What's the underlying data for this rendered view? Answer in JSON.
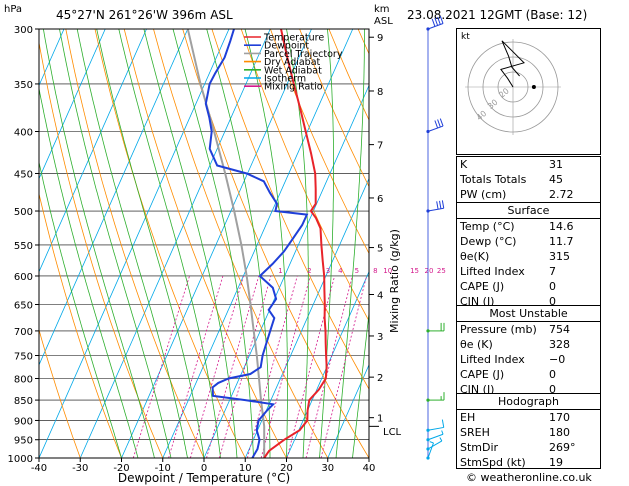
{
  "header": {
    "unit_p": "hPa",
    "location": "45°27'N  261°26'W  396m  ASL",
    "unit_km": "km",
    "unit_asl": "ASL",
    "datetime": "23.08.2021  12GMT  (Base: 12)"
  },
  "legend": [
    {
      "label": "Temperature",
      "color": "#e8232a"
    },
    {
      "label": "Dewpoint",
      "color": "#1f3fd8"
    },
    {
      "label": "Parcel Trajectory",
      "color": "#a0a0a0"
    },
    {
      "label": "Dry Adiabat",
      "color": "#ff8c00"
    },
    {
      "label": "Wet Adiabat",
      "color": "#2eaf2e"
    },
    {
      "label": "Isotherm",
      "color": "#00a8e8"
    },
    {
      "label": "Mixing Ratio",
      "color": "#d4198c"
    }
  ],
  "axes": {
    "xlabel": "Dewpoint / Temperature (°C)",
    "right_label": "Mixing Ratio (g/kg)",
    "lcl_label": "LCL",
    "footer": "© weatheronline.co.uk"
  },
  "chart_data": {
    "type": "line",
    "pressure_ticks": [
      300,
      350,
      400,
      450,
      500,
      550,
      600,
      650,
      700,
      750,
      800,
      850,
      900,
      950,
      1000
    ],
    "temp_ticks": [
      -40,
      -30,
      -20,
      -10,
      0,
      10,
      20,
      30,
      40
    ],
    "xlim": [
      -40,
      40
    ],
    "ylim_hpa": [
      1000,
      300
    ],
    "km_ticks": [
      {
        "label": "9",
        "p": 307
      },
      {
        "label": "8",
        "p": 357
      },
      {
        "label": "7",
        "p": 415
      },
      {
        "label": "6",
        "p": 482
      },
      {
        "label": "5",
        "p": 554
      },
      {
        "label": "4",
        "p": 632
      },
      {
        "label": "3",
        "p": 710
      },
      {
        "label": "2",
        "p": 797
      },
      {
        "label": "1",
        "p": 893
      }
    ],
    "lcl_p": 915,
    "mixing_ratio_labels": [
      {
        "label": "1",
        "x": -1.0
      },
      {
        "label": "2",
        "x": 6.0
      },
      {
        "label": "3",
        "x": 10.5
      },
      {
        "label": "4",
        "x": 13.5
      },
      {
        "label": "5",
        "x": 17.5
      },
      {
        "label": "8",
        "x": 22.0
      },
      {
        "label": "10",
        "x": 25.0
      },
      {
        "label": "15",
        "x": 31.5
      },
      {
        "label": "20",
        "x": 35.0
      },
      {
        "label": "25",
        "x": 38.0
      }
    ],
    "series": [
      {
        "name": "Temperature",
        "color": "#e8232a",
        "points": [
          [
            1000,
            14.6
          ],
          [
            980,
            15.0
          ],
          [
            950,
            17.5
          ],
          [
            925,
            20.2
          ],
          [
            900,
            21.0
          ],
          [
            875,
            20.0
          ],
          [
            850,
            19.3
          ],
          [
            825,
            20.5
          ],
          [
            800,
            21.0
          ],
          [
            775,
            20.0
          ],
          [
            750,
            18.6
          ],
          [
            725,
            17.2
          ],
          [
            700,
            15.8
          ],
          [
            675,
            14.2
          ],
          [
            650,
            12.8
          ],
          [
            625,
            11.2
          ],
          [
            600,
            9.6
          ],
          [
            575,
            7.6
          ],
          [
            550,
            5.6
          ],
          [
            525,
            3.6
          ],
          [
            510,
            1.4
          ],
          [
            500,
            -0.6
          ],
          [
            490,
            -0.2
          ],
          [
            470,
            -1.8
          ],
          [
            450,
            -3.6
          ],
          [
            425,
            -6.8
          ],
          [
            400,
            -10.4
          ],
          [
            375,
            -14.2
          ],
          [
            350,
            -18.4
          ],
          [
            325,
            -22.8
          ],
          [
            300,
            -27.4
          ]
        ]
      },
      {
        "name": "Dewpoint",
        "color": "#1f3fd8",
        "points": [
          [
            1000,
            11.7
          ],
          [
            975,
            12.0
          ],
          [
            950,
            11.5
          ],
          [
            925,
            9.8
          ],
          [
            900,
            9.2
          ],
          [
            875,
            10.2
          ],
          [
            860,
            11.0
          ],
          [
            850,
            3.8
          ],
          [
            840,
            -4.5
          ],
          [
            820,
            -5.5
          ],
          [
            810,
            -4.6
          ],
          [
            800,
            -2.6
          ],
          [
            790,
            2.2
          ],
          [
            775,
            4.0
          ],
          [
            750,
            3.2
          ],
          [
            725,
            2.8
          ],
          [
            700,
            2.4
          ],
          [
            675,
            2.0
          ],
          [
            660,
            -0.2
          ],
          [
            640,
            0.4
          ],
          [
            620,
            -1.6
          ],
          [
            600,
            -6.0
          ],
          [
            580,
            -4.2
          ],
          [
            560,
            -2.8
          ],
          [
            540,
            -2.0
          ],
          [
            520,
            -1.2
          ],
          [
            505,
            -1.2
          ],
          [
            500,
            -9.2
          ],
          [
            490,
            -9.6
          ],
          [
            475,
            -12.5
          ],
          [
            460,
            -15.2
          ],
          [
            450,
            -20.2
          ],
          [
            440,
            -28.2
          ],
          [
            420,
            -31.8
          ],
          [
            400,
            -33.2
          ],
          [
            385,
            -35.2
          ],
          [
            370,
            -37.6
          ],
          [
            360,
            -38.2
          ],
          [
            350,
            -38.8
          ],
          [
            340,
            -38.6
          ],
          [
            325,
            -38.0
          ],
          [
            310,
            -38.4
          ],
          [
            300,
            -38.8
          ]
        ]
      },
      {
        "name": "Parcel Trajectory",
        "color": "#a0a0a0",
        "points": [
          [
            1000,
            14.6
          ],
          [
            915,
            11.2
          ],
          [
            850,
            7.6
          ],
          [
            800,
            4.8
          ],
          [
            750,
            1.8
          ],
          [
            700,
            -1.6
          ],
          [
            650,
            -5.2
          ],
          [
            600,
            -9.2
          ],
          [
            550,
            -13.8
          ],
          [
            500,
            -19.2
          ],
          [
            450,
            -25.4
          ],
          [
            400,
            -32.6
          ],
          [
            350,
            -41.0
          ],
          [
            300,
            -50.0
          ]
        ]
      }
    ]
  },
  "wind_barbs": [
    {
      "p": 300,
      "dir": 250,
      "spd": 40
    },
    {
      "p": 400,
      "dir": 250,
      "spd": 30
    },
    {
      "p": 500,
      "dir": 260,
      "spd": 30
    },
    {
      "p": 700,
      "dir": 270,
      "spd": 20
    },
    {
      "p": 850,
      "dir": 270,
      "spd": 15
    },
    {
      "p": 925,
      "dir": 260,
      "spd": 10
    },
    {
      "p": 950,
      "dir": 250,
      "spd": 5
    },
    {
      "p": 975,
      "dir": 240,
      "spd": 5
    },
    {
      "p": 1000,
      "dir": 200,
      "spd": 5
    }
  ],
  "hodograph": {
    "unit": "kt",
    "ring_labels": [
      "40",
      "30",
      "20"
    ],
    "trace": [
      [
        0,
        0
      ],
      [
        -5,
        8
      ],
      [
        -11,
        16
      ],
      [
        10,
        22
      ],
      [
        -10,
        42
      ],
      [
        -4,
        28
      ],
      [
        -1,
        18
      ],
      [
        6,
        10
      ]
    ],
    "storm_motion": {
      "dir": 269,
      "spd": 19
    }
  },
  "indices": {
    "k_label": "K",
    "k_value": "31",
    "tt_label": "Totals Totals",
    "tt_value": "45",
    "pw_label": "PW (cm)",
    "pw_value": "2.72"
  },
  "surface": {
    "title": "Surface",
    "rows": [
      {
        "label": "Temp (°C)",
        "value": "14.6"
      },
      {
        "label": "Dewp (°C)",
        "value": "11.7"
      },
      {
        "label": "θe(K)",
        "value": "315"
      },
      {
        "label": "Lifted Index",
        "value": "7"
      },
      {
        "label": "CAPE (J)",
        "value": "0"
      },
      {
        "label": "CIN (J)",
        "value": "0"
      }
    ]
  },
  "most_unstable": {
    "title": "Most Unstable",
    "rows": [
      {
        "label": "Pressure (mb)",
        "value": "754"
      },
      {
        "label": "θe (K)",
        "value": "328"
      },
      {
        "label": "Lifted Index",
        "value": "−0"
      },
      {
        "label": "CAPE (J)",
        "value": "0"
      },
      {
        "label": "CIN (J)",
        "value": "0"
      }
    ]
  },
  "hodo_table": {
    "title": "Hodograph",
    "rows": [
      {
        "label": "EH",
        "value": "170"
      },
      {
        "label": "SREH",
        "value": "180"
      },
      {
        "label": "StmDir",
        "value": "269°"
      },
      {
        "label": "StmSpd (kt)",
        "value": "19"
      }
    ]
  }
}
